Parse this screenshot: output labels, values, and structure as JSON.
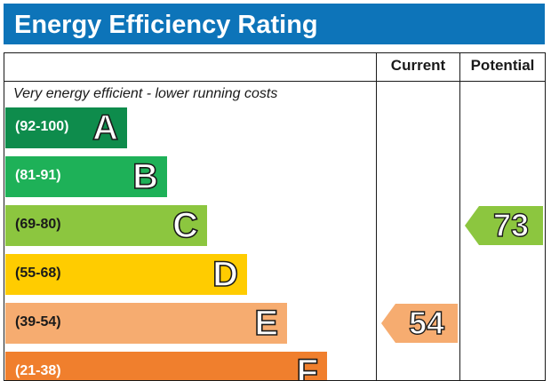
{
  "title": "Energy Efficiency Rating",
  "headers": {
    "current": "Current",
    "potential": "Potential"
  },
  "top_note": "Very energy efficient - lower running costs",
  "bands": [
    {
      "range": "(92-100)",
      "letter": "A",
      "color": "#0e8c4c"
    },
    {
      "range": "(81-91)",
      "letter": "B",
      "color": "#1eb158"
    },
    {
      "range": "(69-80)",
      "letter": "C",
      "color": "#8cc63f"
    },
    {
      "range": "(55-68)",
      "letter": "D",
      "color": "#ffcc00"
    },
    {
      "range": "(39-54)",
      "letter": "E",
      "color": "#f6ac70"
    },
    {
      "range": "(21-38)",
      "letter": "F",
      "color": "#f07f2d"
    }
  ],
  "current": {
    "value": "54",
    "band": "E",
    "color": "#f6ac70"
  },
  "potential": {
    "value": "73",
    "band": "C",
    "color": "#8cc63f"
  }
}
